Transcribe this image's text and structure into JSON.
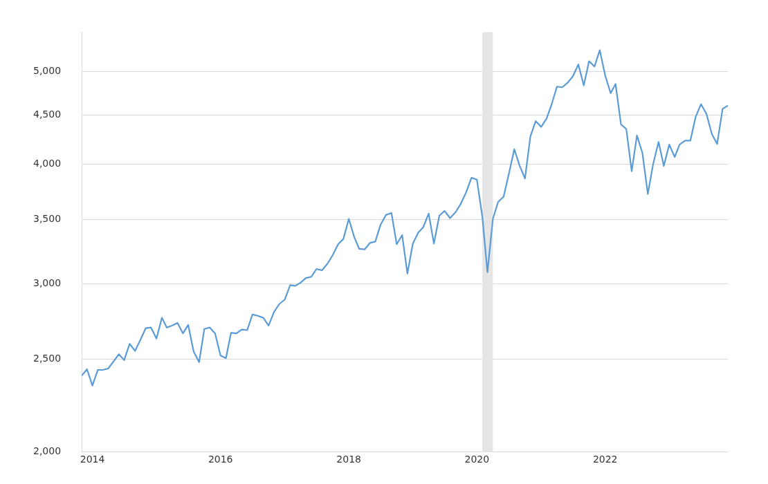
{
  "chart_data": {
    "type": "line",
    "x": [
      "2013-11",
      "2013-12",
      "2014-01",
      "2014-02",
      "2014-03",
      "2014-04",
      "2014-05",
      "2014-06",
      "2014-07",
      "2014-08",
      "2014-09",
      "2014-10",
      "2014-11",
      "2014-12",
      "2015-01",
      "2015-02",
      "2015-03",
      "2015-04",
      "2015-05",
      "2015-06",
      "2015-07",
      "2015-08",
      "2015-09",
      "2015-10",
      "2015-11",
      "2015-12",
      "2016-01",
      "2016-02",
      "2016-03",
      "2016-04",
      "2016-05",
      "2016-06",
      "2016-07",
      "2016-08",
      "2016-09",
      "2016-10",
      "2016-11",
      "2016-12",
      "2017-01",
      "2017-02",
      "2017-03",
      "2017-04",
      "2017-05",
      "2017-06",
      "2017-07",
      "2017-08",
      "2017-09",
      "2017-10",
      "2017-11",
      "2017-12",
      "2018-01",
      "2018-02",
      "2018-03",
      "2018-04",
      "2018-05",
      "2018-06",
      "2018-07",
      "2018-08",
      "2018-09",
      "2018-10",
      "2018-11",
      "2018-12",
      "2019-01",
      "2019-02",
      "2019-03",
      "2019-04",
      "2019-05",
      "2019-06",
      "2019-07",
      "2019-08",
      "2019-09",
      "2019-10",
      "2019-11",
      "2019-12",
      "2020-01",
      "2020-02",
      "2020-03",
      "2020-04",
      "2020-05",
      "2020-06",
      "2020-07",
      "2020-08",
      "2020-09",
      "2020-10",
      "2020-11",
      "2020-12",
      "2021-01",
      "2021-02",
      "2021-03",
      "2021-04",
      "2021-05",
      "2021-06",
      "2021-07",
      "2021-08",
      "2021-09",
      "2021-10",
      "2021-11",
      "2021-12",
      "2022-01",
      "2022-02",
      "2022-03",
      "2022-04",
      "2022-05",
      "2022-06",
      "2022-07",
      "2022-08",
      "2022-09",
      "2022-10",
      "2022-11",
      "2022-12",
      "2023-01",
      "2023-02",
      "2023-03",
      "2023-04",
      "2023-05",
      "2023-06",
      "2023-07",
      "2023-08",
      "2023-09",
      "2023-10",
      "2023-11",
      "2023-12"
    ],
    "series": [
      {
        "color": "#5b9bd5",
        "values": [
          2403,
          2441,
          2347,
          2437,
          2437,
          2445,
          2487,
          2531,
          2495,
          2595,
          2551,
          2619,
          2695,
          2699,
          2628,
          2763,
          2699,
          2712,
          2729,
          2661,
          2716,
          2547,
          2483,
          2690,
          2699,
          2661,
          2523,
          2507,
          2665,
          2661,
          2686,
          2682,
          2785,
          2776,
          2763,
          2712,
          2802,
          2856,
          2887,
          2989,
          2984,
          3007,
          3041,
          3050,
          3108,
          3098,
          3147,
          3212,
          3299,
          3341,
          3507,
          3356,
          3263,
          3258,
          3309,
          3320,
          3458,
          3540,
          3557,
          3299,
          3372,
          3074,
          3304,
          3393,
          3436,
          3552,
          3304,
          3535,
          3574,
          3513,
          3563,
          3636,
          3740,
          3872,
          3854,
          3524,
          3084,
          3507,
          3653,
          3699,
          3908,
          4148,
          3983,
          3866,
          4281,
          4438,
          4376,
          4466,
          4615,
          4823,
          4815,
          4868,
          4945,
          5087,
          4838,
          5127,
          5063,
          5265,
          4953,
          4747,
          4853,
          4403,
          4355,
          3933,
          4288,
          4110,
          3723,
          4001,
          4221,
          3983,
          4194,
          4071,
          4194,
          4234,
          4234,
          4487,
          4623,
          4515,
          4301,
          4201,
          4572,
          4608
        ]
      }
    ],
    "xlim": [
      "2013-11",
      "2023-12"
    ],
    "xticks": [
      "2014",
      "2016",
      "2018",
      "2020",
      "2022"
    ],
    "ylim": [
      2000,
      5500
    ],
    "yticks": [
      {
        "value": 2000,
        "label": "2,000"
      },
      {
        "value": 2500,
        "label": "2,500"
      },
      {
        "value": 3000,
        "label": "3,000"
      },
      {
        "value": 3500,
        "label": "3,500"
      },
      {
        "value": 4000,
        "label": "4,000"
      },
      {
        "value": 4500,
        "label": "4,500"
      },
      {
        "value": 5000,
        "label": "5,000"
      }
    ],
    "log": "y",
    "grid": "y",
    "legend": false,
    "marker": "none",
    "line_style": "solid",
    "bands": [
      {
        "axis": "x",
        "from": "2020-02",
        "to": "2020-04",
        "color": "#e5e5e5"
      }
    ]
  }
}
